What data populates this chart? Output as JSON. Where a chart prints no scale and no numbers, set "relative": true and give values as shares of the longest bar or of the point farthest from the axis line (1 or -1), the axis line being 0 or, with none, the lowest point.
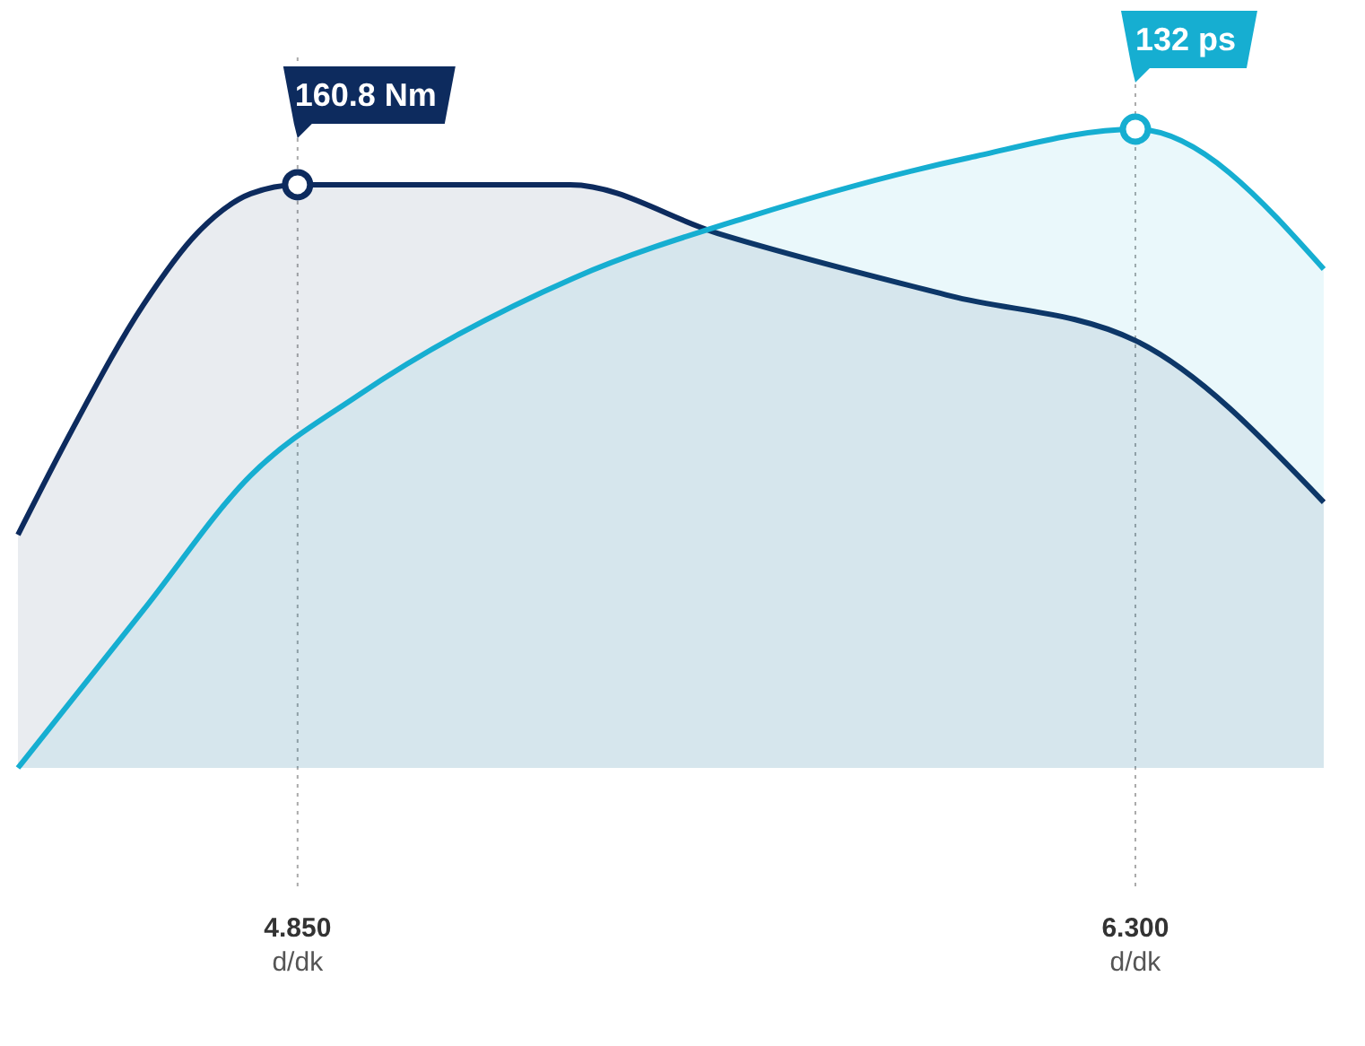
{
  "chart_data": {
    "type": "area",
    "relative": true,
    "xlim": [
      4.366,
      6.626
    ],
    "xticks": [
      {
        "value": 4.85,
        "label": "4.850"
      },
      {
        "value": 6.3,
        "label": "6.300"
      }
    ],
    "xlabel": "d/dk",
    "series": [
      {
        "color": "#0d2b5e",
        "x": [
          4.366,
          4.459,
          4.583,
          4.676,
          4.769,
          4.85,
          5.322,
          5.577,
          5.98,
          6.3,
          6.626
        ],
        "values": [
          0.365,
          0.528,
          0.725,
          0.837,
          0.899,
          0.913,
          0.913,
          0.837,
          0.739,
          0.669,
          0.416
        ]
      },
      {
        "color": "#16aed1",
        "x": [
          4.366,
          4.583,
          4.769,
          4.956,
          5.328,
          5.639,
          6.011,
          6.3,
          6.626
        ],
        "values": [
          0,
          0.247,
          0.458,
          0.584,
          0.767,
          0.865,
          0.955,
          1,
          0.781
        ]
      }
    ],
    "ref_lines": [
      {
        "axis": "x",
        "value": 4.85,
        "line_style": "dotted",
        "color": "#aaaaaa"
      },
      {
        "axis": "x",
        "value": 6.3,
        "line_style": "dotted",
        "color": "#aaaaaa"
      }
    ],
    "annotations": [
      {
        "text": "160.8 Nm",
        "x": 4.85,
        "y": 0.913
      },
      {
        "text": "132 ps",
        "x": 6.3,
        "y": 1
      }
    ]
  }
}
